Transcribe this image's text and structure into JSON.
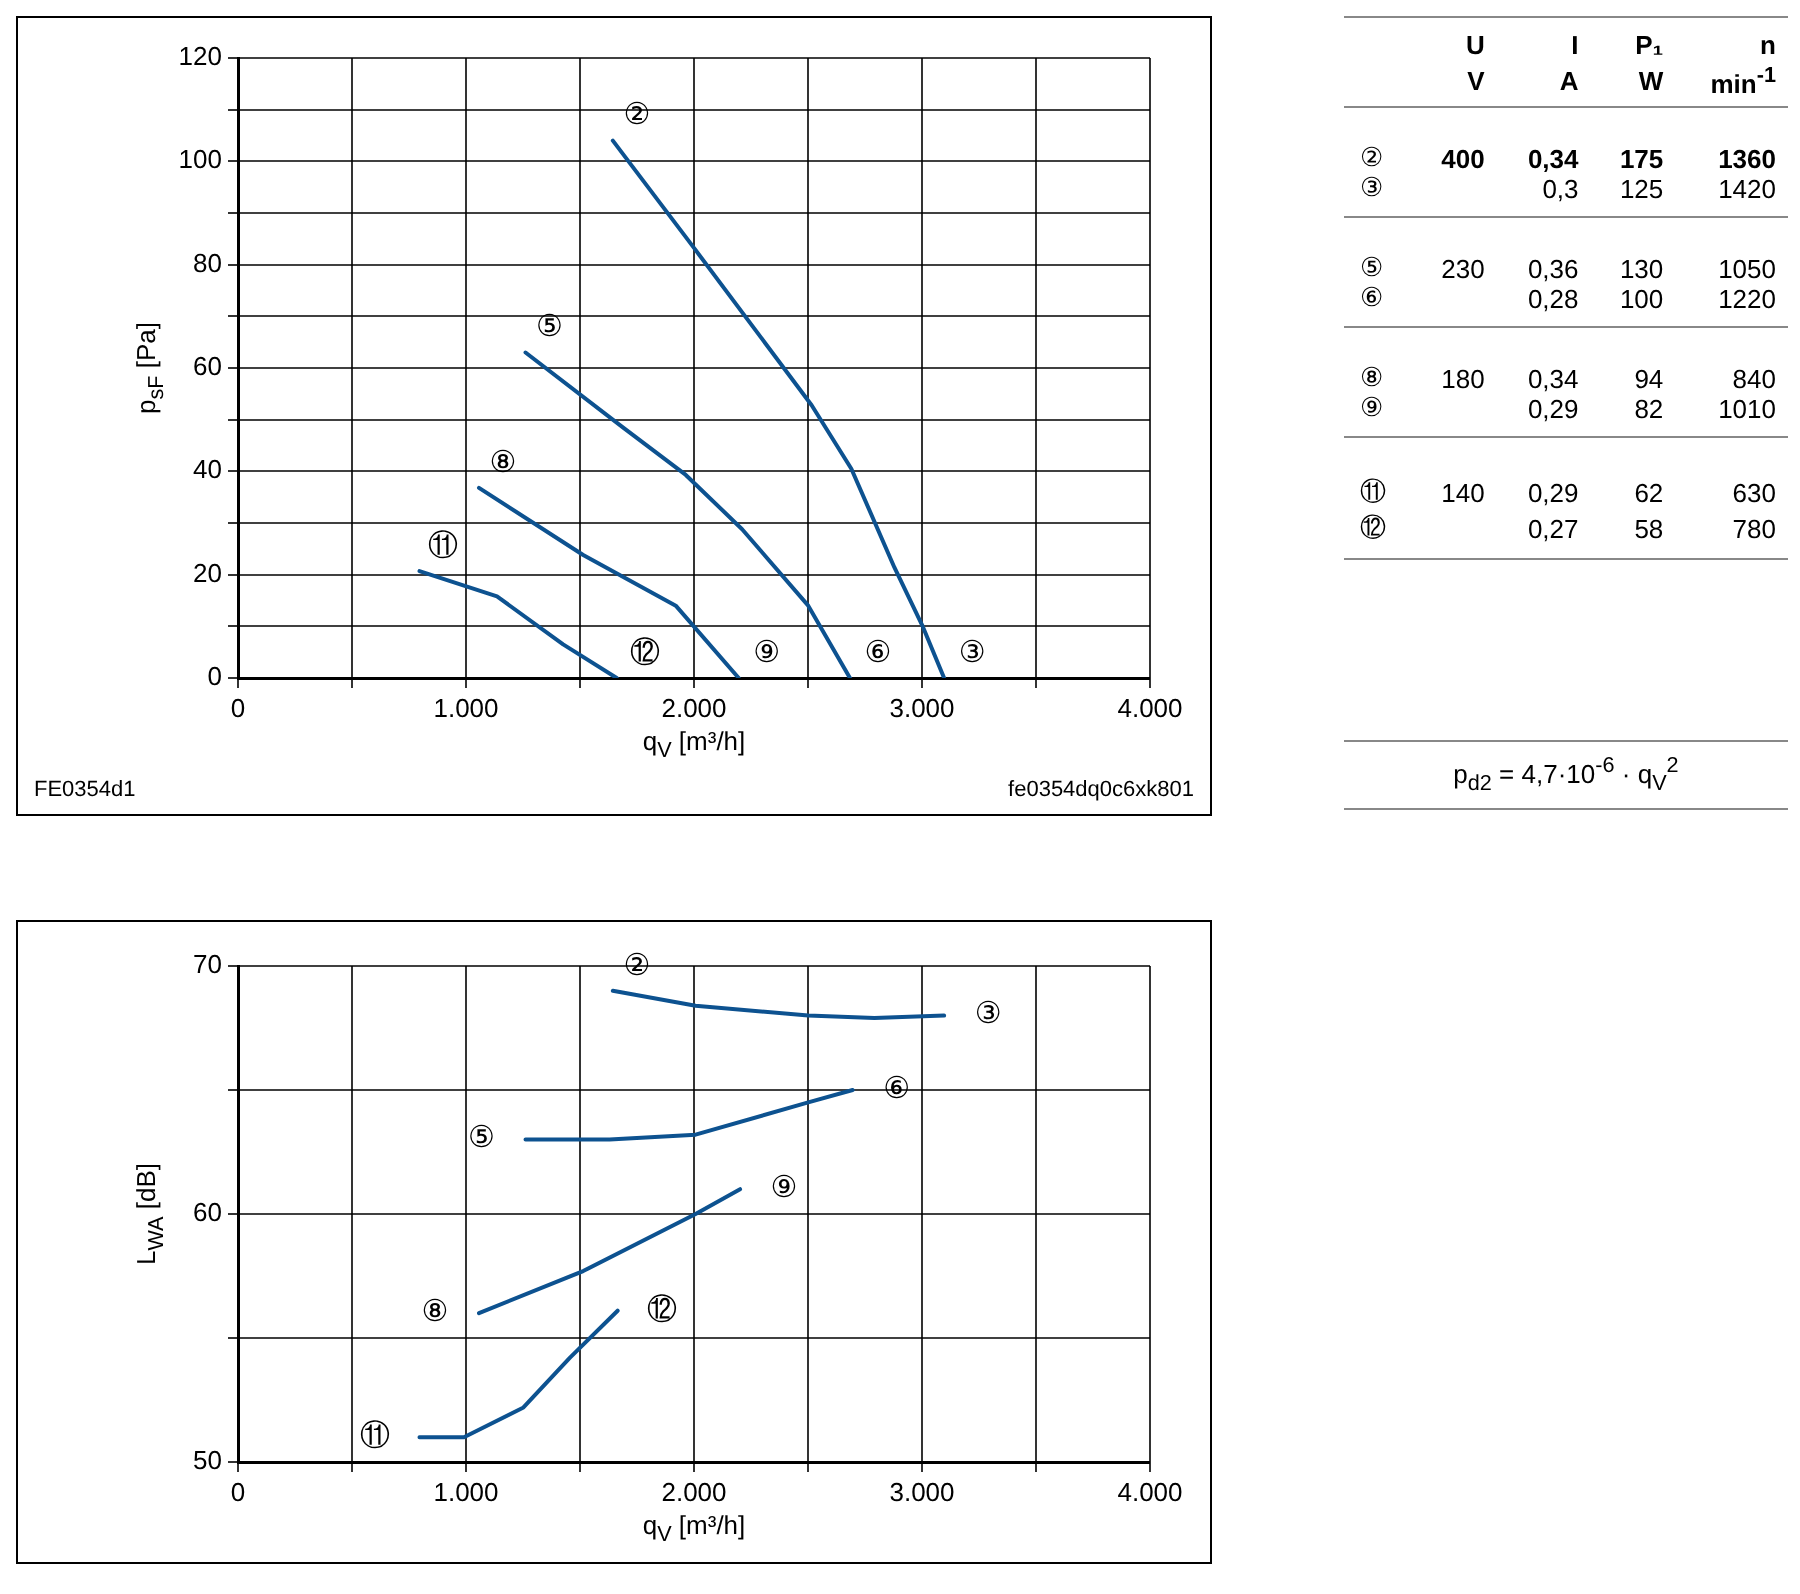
{
  "chart_data": [
    {
      "type": "line",
      "xlabel": "q$_{V}$ [m³/h]",
      "ylabel": "p$_{sF}$ [Pa]",
      "xlim": [
        0,
        4000
      ],
      "ylim": [
        0,
        120
      ],
      "xticks": [
        0,
        {
          "value": 500,
          "label": null
        },
        {
          "value": 1000,
          "label": "1.000"
        },
        {
          "value": 1500,
          "label": null
        },
        {
          "value": 2000,
          "label": "2.000"
        },
        {
          "value": 2500,
          "label": null
        },
        {
          "value": 3000,
          "label": "3.000"
        },
        {
          "value": 3500,
          "label": null
        },
        {
          "value": 4000,
          "label": "4.000"
        }
      ],
      "yticks": [
        0,
        {
          "value": 10,
          "label": null
        },
        20,
        {
          "value": 30,
          "label": null
        },
        40,
        {
          "value": 50,
          "label": null
        },
        60,
        {
          "value": 70,
          "label": null
        },
        80,
        {
          "value": 90,
          "label": null
        },
        100,
        {
          "value": 110,
          "label": null
        },
        120
      ],
      "grid": true,
      "marker": "none",
      "line_style": "solid",
      "series": [
        {
          "color": "#0d5290",
          "x": [
            1644,
            2004,
            2516,
            2690,
            2879,
            3001,
            3097
          ],
          "values": [
            104,
            83,
            52.8,
            40.5,
            21.4,
            10.2,
            0
          ]
        },
        {
          "color": "#0d5290",
          "x": [
            1261,
            1688,
            1964,
            2211,
            2501,
            2684
          ],
          "values": [
            63,
            48.5,
            39.3,
            28.8,
            14,
            0
          ]
        },
        {
          "color": "#0d5290",
          "x": [
            1057,
            1514,
            1920,
            2196
          ],
          "values": [
            36.8,
            23.8,
            14,
            0
          ]
        },
        {
          "color": "#0d5290",
          "x": [
            796,
            1136,
            1426,
            1661
          ],
          "values": [
            20.7,
            15.8,
            6.5,
            0
          ]
        }
      ],
      "annotations": [
        "FE0354d1",
        "fe0354dq0c6xk801",
        {
          "text": "②",
          "x": 1644,
          "y": 104
        },
        {
          "text": "⑤",
          "x": 1261,
          "y": 63
        },
        {
          "text": "⑧",
          "x": 1057,
          "y": 36.8
        },
        {
          "text": "⑪",
          "x": 796,
          "y": 20.7
        },
        {
          "text": "⑫",
          "x": 1661,
          "y": 0
        },
        {
          "text": "⑨",
          "x": 2196,
          "y": 0
        },
        {
          "text": "⑥",
          "x": 2684,
          "y": 0
        },
        {
          "text": "③",
          "x": 3097,
          "y": 0
        }
      ]
    },
    {
      "type": "other",
      "categories": [
        "U",
        "I",
        "P₁",
        "n"
      ],
      "y_categories": [
        "②",
        "③",
        "⑤",
        "⑥",
        "⑧",
        "⑨",
        "⑪",
        "⑫"
      ],
      "cell_labels": [
        [
          "400",
          "0,34",
          "175",
          "1360"
        ],
        [
          null,
          "0,3",
          "125",
          "1420"
        ],
        [
          "230",
          "0,36",
          "130",
          "1050"
        ],
        [
          null,
          "0,28",
          "100",
          "1220"
        ],
        [
          "180",
          "0,34",
          "94",
          "840"
        ],
        [
          null,
          "0,29",
          "82",
          "1010"
        ],
        [
          "140",
          "0,29",
          "62",
          "630"
        ],
        [
          null,
          "0,27",
          "58",
          "780"
        ]
      ],
      "annotations": [
        "V",
        "A",
        "W",
        "min$^{-1}$",
        "p$_{d2}$ = 4,7·10$^{-6}$ · q$_{V}$$^{2}$"
      ]
    },
    {
      "type": "line",
      "xlabel": "q$_{V}$ [m³/h]",
      "ylabel": "L$_{WA}$ [dB]",
      "xlim": [
        0,
        4000
      ],
      "ylim": [
        50,
        70
      ],
      "xticks": [
        0,
        {
          "value": 500,
          "label": null
        },
        {
          "value": 1000,
          "label": "1.000"
        },
        {
          "value": 1500,
          "label": null
        },
        {
          "value": 2000,
          "label": "2.000"
        },
        {
          "value": 2500,
          "label": null
        },
        {
          "value": 3000,
          "label": "3.000"
        },
        {
          "value": 3500,
          "label": null
        },
        {
          "value": 4000,
          "label": "4.000"
        }
      ],
      "yticks": [
        50,
        {
          "value": 55,
          "label": null
        },
        60,
        {
          "value": 65,
          "label": null
        },
        70
      ],
      "grid": true,
      "marker": "none",
      "line_style": "solid",
      "series": [
        {
          "color": "#0d5290",
          "x": [
            1644,
            2007,
            2501,
            2791,
            3097
          ],
          "values": [
            69,
            68.4,
            68,
            67.9,
            68
          ]
        },
        {
          "color": "#0d5290",
          "x": [
            1261,
            1630,
            2007,
            2501,
            2696
          ],
          "values": [
            63,
            63,
            63.2,
            64.5,
            65
          ]
        },
        {
          "color": "#0d5290",
          "x": [
            1057,
            1514,
            2007,
            2202
          ],
          "values": [
            56,
            57.7,
            60,
            61
          ]
        },
        {
          "color": "#0d5290",
          "x": [
            796,
            991,
            1252,
            1455,
            1665
          ],
          "values": [
            51,
            51,
            52.2,
            54.2,
            56.1
          ]
        }
      ],
      "annotations": [
        {
          "text": "②",
          "x": 1644,
          "y": 69
        },
        {
          "text": "③",
          "x": 3097,
          "y": 68
        },
        {
          "text": "⑤",
          "x": 1261,
          "y": 63
        },
        {
          "text": "⑥",
          "x": 2696,
          "y": 65
        },
        {
          "text": "⑧",
          "x": 1057,
          "y": 56
        },
        {
          "text": "⑨",
          "x": 2202,
          "y": 61
        },
        {
          "text": "⑪",
          "x": 796,
          "y": 51
        },
        {
          "text": "⑫",
          "x": 1665,
          "y": 56.1
        }
      ]
    }
  ]
}
